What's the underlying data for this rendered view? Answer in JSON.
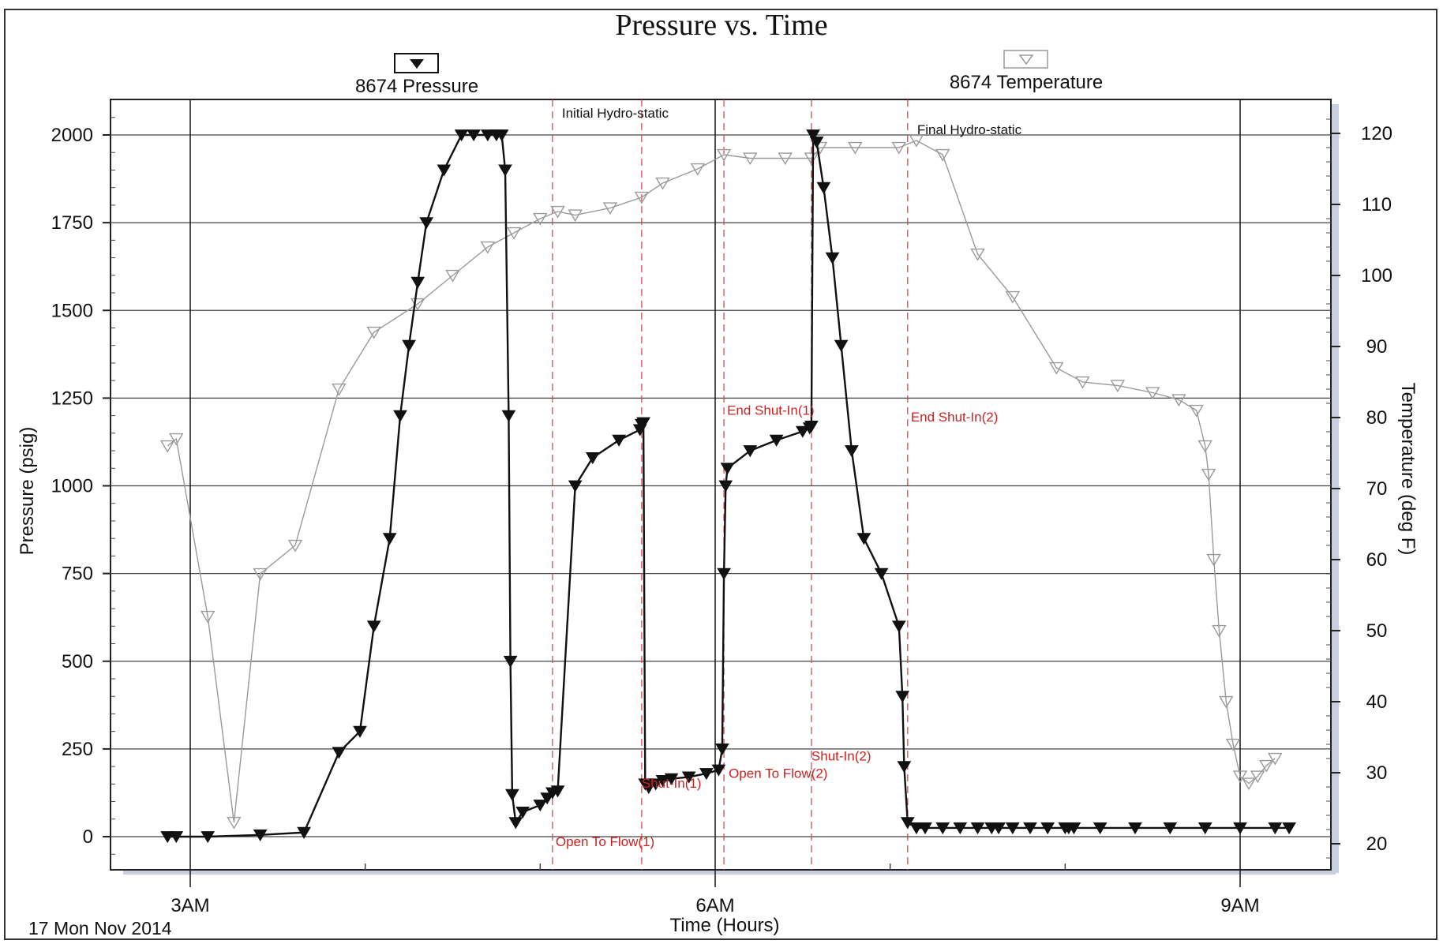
{
  "chart_data": {
    "type": "line",
    "title": "Pressure vs. Time",
    "xlabel": "Time (Hours)",
    "ylabel": "Pressure (psig)",
    "y2label": "Temperature (deg F)",
    "date_label": "17 Mon Nov 2014",
    "x_unit": "hours",
    "xlim": [
      2.6,
      9.4
    ],
    "ylim": [
      -100,
      2100
    ],
    "y2lim": [
      17,
      124
    ],
    "x_ticks": [
      {
        "value": 3,
        "label": "3AM"
      },
      {
        "value": 6,
        "label": "6AM"
      },
      {
        "value": 9,
        "label": "9AM"
      }
    ],
    "x_minor_ticks": [
      4,
      5,
      7,
      8
    ],
    "y_ticks": [
      0,
      250,
      500,
      750,
      1000,
      1250,
      1500,
      1750,
      2000
    ],
    "y2_ticks": [
      20,
      30,
      40,
      50,
      60,
      70,
      80,
      90,
      100,
      110,
      120
    ],
    "grid": true,
    "legend_placement": "top",
    "solid_vlines": [
      3,
      6,
      9
    ],
    "event_lines": [
      5.07,
      5.58,
      6.05,
      6.55,
      7.1
    ],
    "series": [
      {
        "name": "8674 Pressure",
        "axis": "left",
        "color": "#111111",
        "marker": "filled-down-triangle",
        "x": [
          2.87,
          2.92,
          3.1,
          3.4,
          3.65,
          3.85,
          3.97,
          4.05,
          4.14,
          4.2,
          4.25,
          4.3,
          4.35,
          4.45,
          4.55,
          4.62,
          4.7,
          4.75,
          4.78,
          4.8,
          4.82,
          4.83,
          4.84,
          4.86,
          4.9,
          5.0,
          5.04,
          5.07,
          5.1,
          5.2,
          5.3,
          5.45,
          5.57,
          5.58,
          5.59,
          5.6,
          5.62,
          5.66,
          5.7,
          5.75,
          5.85,
          5.95,
          6.02,
          6.04,
          6.05,
          6.06,
          6.07,
          6.2,
          6.35,
          6.5,
          6.54,
          6.55,
          6.56,
          6.58,
          6.62,
          6.67,
          6.72,
          6.78,
          6.85,
          6.95,
          7.05,
          7.07,
          7.08,
          7.1,
          7.15,
          7.2,
          7.3,
          7.4,
          7.5,
          7.58,
          7.62,
          7.7,
          7.8,
          7.9,
          8.0,
          8.02,
          8.05,
          8.2,
          8.4,
          8.6,
          8.8,
          9.0,
          9.2,
          9.28
        ],
        "y": [
          0,
          0,
          0,
          5,
          12,
          240,
          300,
          600,
          850,
          1200,
          1400,
          1580,
          1750,
          1900,
          2000,
          2000,
          2000,
          2000,
          2000,
          1900,
          1200,
          500,
          120,
          40,
          70,
          90,
          110,
          125,
          130,
          1000,
          1080,
          1130,
          1160,
          1175,
          1180,
          150,
          140,
          150,
          160,
          165,
          170,
          180,
          190,
          250,
          750,
          1000,
          1050,
          1100,
          1130,
          1155,
          1165,
          1170,
          2000,
          1980,
          1850,
          1650,
          1400,
          1100,
          850,
          750,
          600,
          400,
          200,
          40,
          25,
          25,
          25,
          25,
          25,
          25,
          25,
          25,
          25,
          25,
          25,
          25,
          25,
          25,
          25,
          25,
          25,
          25,
          25,
          25
        ]
      },
      {
        "name": "8674 Temperature",
        "axis": "right",
        "color": "#9a9a9a",
        "marker": "open-down-triangle",
        "x": [
          2.87,
          2.92,
          3.1,
          3.25,
          3.4,
          3.6,
          3.85,
          4.05,
          4.3,
          4.5,
          4.7,
          4.85,
          5.0,
          5.1,
          5.2,
          5.4,
          5.58,
          5.7,
          5.9,
          6.05,
          6.2,
          6.4,
          6.55,
          6.6,
          6.8,
          7.05,
          7.15,
          7.3,
          7.5,
          7.7,
          7.95,
          8.1,
          8.3,
          8.5,
          8.65,
          8.75,
          8.8,
          8.82,
          8.85,
          8.88,
          8.92,
          8.96,
          9.0,
          9.05,
          9.1,
          9.15,
          9.2
        ],
        "y": [
          76,
          77,
          52,
          23,
          58,
          62,
          84,
          92,
          96,
          100,
          104,
          106,
          108,
          109,
          108.5,
          109.5,
          111,
          113,
          115,
          117,
          116.5,
          116.5,
          116.5,
          118,
          118,
          118,
          119,
          117,
          103,
          97,
          87,
          85,
          84.5,
          83.5,
          82.5,
          81,
          76,
          72,
          60,
          50,
          40,
          34,
          29.5,
          28.5,
          29.5,
          31,
          32
        ]
      }
    ],
    "annotations": [
      {
        "text": "Initial Hydro-static",
        "x": 5.07,
        "y": 2000,
        "color": "#111111"
      },
      {
        "text": "Final Hydro-static",
        "x": 7.1,
        "y": 1980,
        "color": "#111111"
      },
      {
        "text": "Open To Flow(1)",
        "x": 5.07,
        "y": 40,
        "color": "#cc2222"
      },
      {
        "text": "Shut-In(1)",
        "x": 5.58,
        "y": 130,
        "color": "#cc2222"
      },
      {
        "text": "End Shut-In(1)",
        "x": 6.05,
        "y": 1180,
        "color": "#cc2222"
      },
      {
        "text": "Open To Flow(2)",
        "x": 6.05,
        "y": 150,
        "color": "#cc2222"
      },
      {
        "text": "Shut-In(2)",
        "x": 6.55,
        "y": 190,
        "color": "#cc2222"
      },
      {
        "text": "End Shut-In(2)",
        "x": 7.1,
        "y": 1170,
        "color": "#cc2222"
      }
    ]
  }
}
